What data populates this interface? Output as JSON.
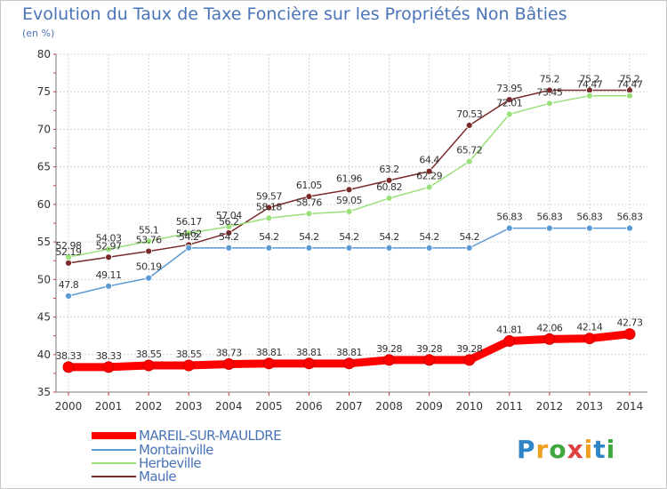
{
  "chart_data": {
    "type": "line",
    "title": "Evolution du Taux de Taxe Foncière sur les Propriétés Non Bâties",
    "ylabel": "(en %)",
    "xlabel": "",
    "x": [
      "2000",
      "2001",
      "2002",
      "2003",
      "2004",
      "2005",
      "2006",
      "2007",
      "2008",
      "2009",
      "2010",
      "2011",
      "2012",
      "2013",
      "2014"
    ],
    "ylim": [
      35,
      80
    ],
    "yticks": [
      "35",
      "40",
      "45",
      "50",
      "55",
      "60",
      "65",
      "70",
      "75",
      "80"
    ],
    "grid": "horizontal",
    "legend": "bottom-left",
    "series": [
      {
        "name": "MAREIL-SUR-MAULDRE",
        "color": "#ff0000",
        "width": 9,
        "values": [
          38.33,
          38.33,
          38.55,
          38.55,
          38.73,
          38.81,
          38.81,
          38.81,
          39.28,
          39.28,
          39.28,
          41.81,
          42.06,
          42.14,
          42.73
        ],
        "labels": [
          "38.33",
          "38.33",
          "38.55",
          "38.55",
          "38.73",
          "38.81",
          "38.81",
          "38.81",
          "39.28",
          "39.28",
          "39.28",
          "41.81",
          "42.06",
          "42.14",
          "42.73"
        ]
      },
      {
        "name": "Montainville",
        "color": "#5b9bd5",
        "width": 1.5,
        "values": [
          47.8,
          49.11,
          50.19,
          54.2,
          54.2,
          54.2,
          54.2,
          54.2,
          54.2,
          54.2,
          54.2,
          56.83,
          56.83,
          56.83,
          56.83
        ],
        "labels": [
          "47.8",
          "49.11",
          "50.19",
          "54.2",
          "54.2",
          "54.2",
          "54.2",
          "54.2",
          "54.2",
          "54.2",
          "54.2",
          "56.83",
          "56.83",
          "56.83",
          "56.83"
        ]
      },
      {
        "name": "Herbeville",
        "color": "#99e07a",
        "width": 1.5,
        "values": [
          52.98,
          54.03,
          55.1,
          56.17,
          57.04,
          58.18,
          58.76,
          59.05,
          60.82,
          62.29,
          65.72,
          72.01,
          73.45,
          74.47,
          74.47
        ],
        "labels": [
          "52.98",
          "54.03",
          "55.1",
          "56.17",
          "57.04",
          "58.18",
          "58.76",
          "59.05",
          "60.82",
          "62.29",
          "65.72",
          "72.01",
          "73.45",
          "74.47",
          "74.47"
        ]
      },
      {
        "name": "Maule",
        "color": "#7a2a2a",
        "width": 1.5,
        "values": [
          52.19,
          52.97,
          53.76,
          54.62,
          56.2,
          59.57,
          61.05,
          61.96,
          63.2,
          64.4,
          70.53,
          73.95,
          75.2,
          75.2,
          75.2
        ],
        "labels": [
          "52.19",
          "52.97",
          "53.76",
          "54.62",
          "56.2",
          "59.57",
          "61.05",
          "61.96",
          "63.2",
          "64.4",
          "70.53",
          "73.95",
          "75.2",
          "75.2",
          "75.2"
        ]
      }
    ]
  },
  "logo": {
    "text": "Proxiti"
  }
}
